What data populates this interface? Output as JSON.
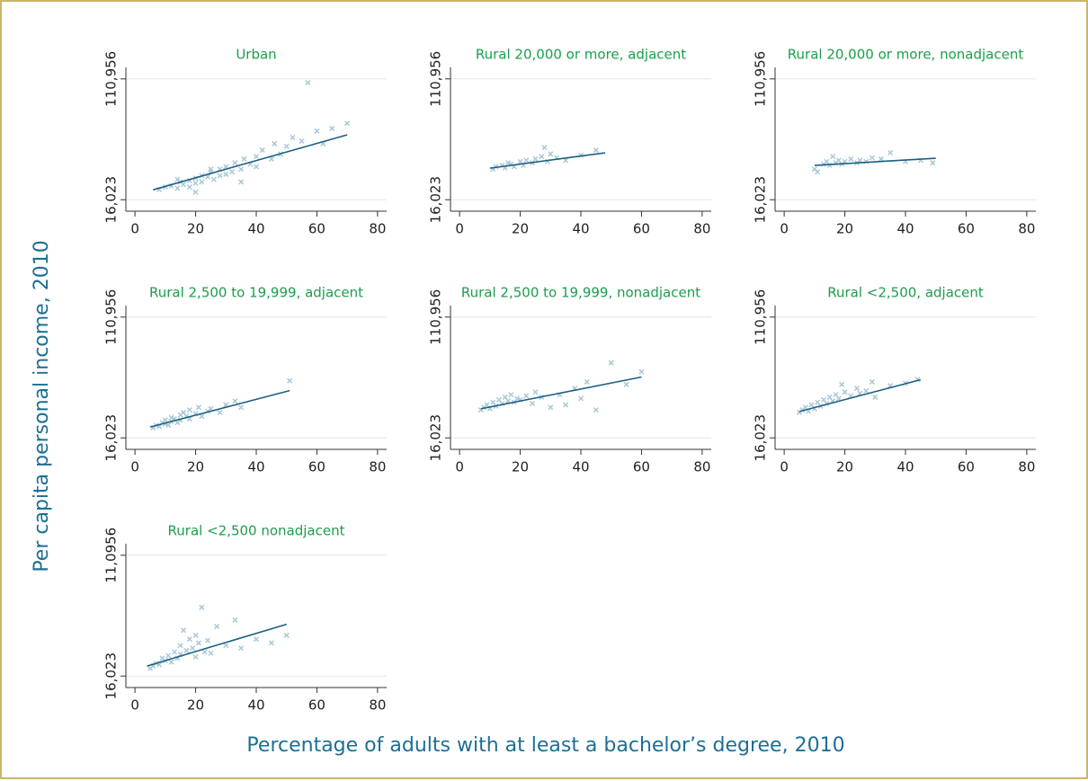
{
  "y_label": "Per capita personal income, 2010",
  "x_label": "Percentage of adults with at least a bachelor’s degree, 2010",
  "chart_data": [
    {
      "type": "scatter",
      "title": "Urban",
      "xlim": [
        -3,
        83
      ],
      "ylim": [
        7000,
        120000
      ],
      "xticks": [
        0,
        20,
        40,
        60,
        80
      ],
      "yticks": [
        {
          "value": 16023,
          "label": "16,023"
        },
        {
          "value": 110956,
          "label": "110,956"
        }
      ],
      "grid": true,
      "color": "#a9c8d8",
      "fit_color": "#1d5f80",
      "x": [
        8,
        10,
        12,
        14,
        15,
        16,
        18,
        18,
        20,
        20,
        22,
        22,
        24,
        25,
        26,
        28,
        28,
        30,
        30,
        32,
        33,
        35,
        36,
        38,
        40,
        40,
        42,
        45,
        46,
        48,
        50,
        52,
        55,
        57,
        60,
        62,
        65,
        70,
        35,
        20,
        25,
        14
      ],
      "values": [
        24000,
        26000,
        27000,
        25000,
        30000,
        28000,
        31000,
        26000,
        33000,
        29000,
        35000,
        30000,
        34000,
        38000,
        32000,
        40000,
        35000,
        42000,
        36000,
        38000,
        45000,
        40000,
        48000,
        44000,
        50000,
        42000,
        55000,
        48000,
        60000,
        52000,
        58000,
        65000,
        62000,
        108000,
        70000,
        60000,
        72000,
        76000,
        30000,
        22000,
        40000,
        32000
      ],
      "fit_x": [
        6,
        70
      ],
      "fit_values": [
        23817,
        67035
      ]
    },
    {
      "type": "scatter",
      "title": "Rural 20,000 or more, adjacent",
      "xlim": [
        -3,
        83
      ],
      "ylim": [
        7000,
        120000
      ],
      "xticks": [
        0,
        20,
        40,
        60,
        80
      ],
      "yticks": [
        {
          "value": 16023,
          "label": "16,023"
        },
        {
          "value": 110956,
          "label": "110,956"
        }
      ],
      "grid": true,
      "color": "#a9c8d8",
      "fit_color": "#1d5f80",
      "x": [
        11,
        12,
        14,
        15,
        16,
        17,
        18,
        20,
        21,
        22,
        24,
        25,
        27,
        28,
        29,
        30,
        32,
        35,
        40,
        45
      ],
      "values": [
        40000,
        42000,
        43000,
        41000,
        45000,
        44000,
        42000,
        46000,
        43000,
        47000,
        45000,
        48000,
        50000,
        57000,
        46000,
        52000,
        49000,
        47000,
        51000,
        55000
      ],
      "fit_x": [
        10,
        48
      ],
      "fit_values": [
        40821,
        52866
      ]
    },
    {
      "type": "scatter",
      "title": "Rural 20,000 or more, nonadjacent",
      "xlim": [
        -3,
        83
      ],
      "ylim": [
        7000,
        120000
      ],
      "xticks": [
        0,
        20,
        40,
        60,
        80
      ],
      "yticks": [
        {
          "value": 16023,
          "label": "16,023"
        },
        {
          "value": 110956,
          "label": "110,956"
        }
      ],
      "grid": true,
      "color": "#a9c8d8",
      "fit_color": "#1d5f80",
      "x": [
        10,
        11,
        13,
        14,
        15,
        16,
        17,
        18,
        19,
        20,
        22,
        24,
        25,
        27,
        29,
        32,
        35,
        40,
        45,
        49
      ],
      "values": [
        40000,
        38000,
        44000,
        46000,
        43000,
        50000,
        45000,
        47000,
        44000,
        46000,
        48000,
        45000,
        47000,
        46000,
        49000,
        48000,
        53000,
        46000,
        47000,
        45000
      ],
      "fit_x": [
        10,
        50
      ],
      "fit_values": [
        42946,
        48614
      ]
    },
    {
      "type": "scatter",
      "title": "Rural 2,500 to 19,999, adjacent",
      "xlim": [
        -3,
        83
      ],
      "ylim": [
        7000,
        120000
      ],
      "xticks": [
        0,
        20,
        40,
        60,
        80
      ],
      "yticks": [
        {
          "value": 16023,
          "label": "16,023"
        },
        {
          "value": 110956,
          "label": "110,956"
        }
      ],
      "grid": true,
      "color": "#a9c8d8",
      "fit_color": "#1d5f80",
      "x": [
        6,
        7,
        8,
        9,
        10,
        10,
        11,
        12,
        12,
        13,
        14,
        15,
        15,
        16,
        17,
        18,
        18,
        20,
        21,
        22,
        24,
        25,
        28,
        30,
        33,
        35,
        51
      ],
      "values": [
        24000,
        26000,
        25000,
        28000,
        27000,
        30000,
        26000,
        32000,
        29000,
        31000,
        28000,
        34000,
        30000,
        36000,
        33000,
        38000,
        31000,
        35000,
        40000,
        33000,
        37000,
        39000,
        36000,
        42000,
        45000,
        40000,
        61000
      ],
      "fit_x": [
        5,
        51
      ],
      "fit_values": [
        24590,
        53150
      ]
    },
    {
      "type": "scatter",
      "title": "Rural 2,500 to 19,999, nonadjacent",
      "xlim": [
        -3,
        83
      ],
      "ylim": [
        7000,
        120000
      ],
      "xticks": [
        0,
        20,
        40,
        60,
        80
      ],
      "yticks": [
        {
          "value": 16023,
          "label": "16,023"
        },
        {
          "value": 110956,
          "label": "110,956"
        }
      ],
      "grid": true,
      "color": "#a9c8d8",
      "fit_color": "#1d5f80",
      "x": [
        7,
        8,
        9,
        10,
        11,
        12,
        13,
        14,
        15,
        16,
        17,
        18,
        19,
        20,
        22,
        24,
        25,
        27,
        30,
        33,
        35,
        38,
        40,
        42,
        45,
        50,
        55,
        60
      ],
      "values": [
        38000,
        40000,
        42000,
        39000,
        44000,
        41000,
        46000,
        43000,
        48000,
        45000,
        50000,
        44000,
        47000,
        46000,
        49000,
        43000,
        52000,
        48000,
        40000,
        50000,
        42000,
        55000,
        47000,
        60000,
        38000,
        75000,
        58000,
        68000
      ],
      "fit_x": [
        7,
        60
      ],
      "fit_values": [
        38870,
        63860
      ]
    },
    {
      "type": "scatter",
      "title": "Rural <2,500, adjacent",
      "xlim": [
        -3,
        83
      ],
      "ylim": [
        7000,
        120000
      ],
      "xticks": [
        0,
        20,
        40,
        60,
        80
      ],
      "yticks": [
        {
          "value": 16023,
          "label": "16,023"
        },
        {
          "value": 110956,
          "label": "110,956"
        }
      ],
      "grid": true,
      "color": "#a9c8d8",
      "fit_color": "#1d5f80",
      "x": [
        5,
        6,
        7,
        8,
        9,
        10,
        11,
        12,
        13,
        14,
        15,
        16,
        17,
        18,
        19,
        20,
        22,
        24,
        25,
        27,
        29,
        30,
        35,
        40,
        44
      ],
      "values": [
        36000,
        38000,
        40000,
        37000,
        42000,
        39000,
        44000,
        41000,
        46000,
        43000,
        48000,
        45000,
        50000,
        47000,
        58000,
        52000,
        49000,
        55000,
        51000,
        53000,
        60000,
        48000,
        57000,
        59000,
        62000
      ],
      "fit_x": [
        5,
        45
      ],
      "fit_values": [
        36730,
        61720
      ]
    },
    {
      "type": "scatter",
      "title": "Rural <2,500 nonadjacent",
      "xlim": [
        -3,
        83
      ],
      "ylim": [
        7000,
        120000
      ],
      "xticks": [
        0,
        20,
        40,
        60,
        80
      ],
      "yticks": [
        {
          "value": 16023,
          "label": "16,023"
        },
        {
          "value": 110956,
          "label": "11,0956"
        }
      ],
      "grid": true,
      "color": "#a9c8d8",
      "fit_color": "#1d5f80",
      "x": [
        5,
        6,
        7,
        8,
        9,
        10,
        11,
        12,
        13,
        14,
        15,
        15,
        16,
        17,
        18,
        19,
        20,
        20,
        21,
        22,
        23,
        24,
        25,
        27,
        30,
        33,
        35,
        40,
        45,
        50
      ],
      "values": [
        22000,
        24000,
        26000,
        25000,
        30000,
        28000,
        32000,
        27000,
        35000,
        30000,
        40000,
        33000,
        52000,
        36000,
        45000,
        38000,
        48000,
        31000,
        42000,
        70000,
        35000,
        44000,
        34000,
        55000,
        40000,
        60000,
        38000,
        45000,
        42000,
        48000
      ],
      "fit_x": [
        4,
        50
      ],
      "fit_values": [
        23880,
        56730
      ]
    }
  ]
}
